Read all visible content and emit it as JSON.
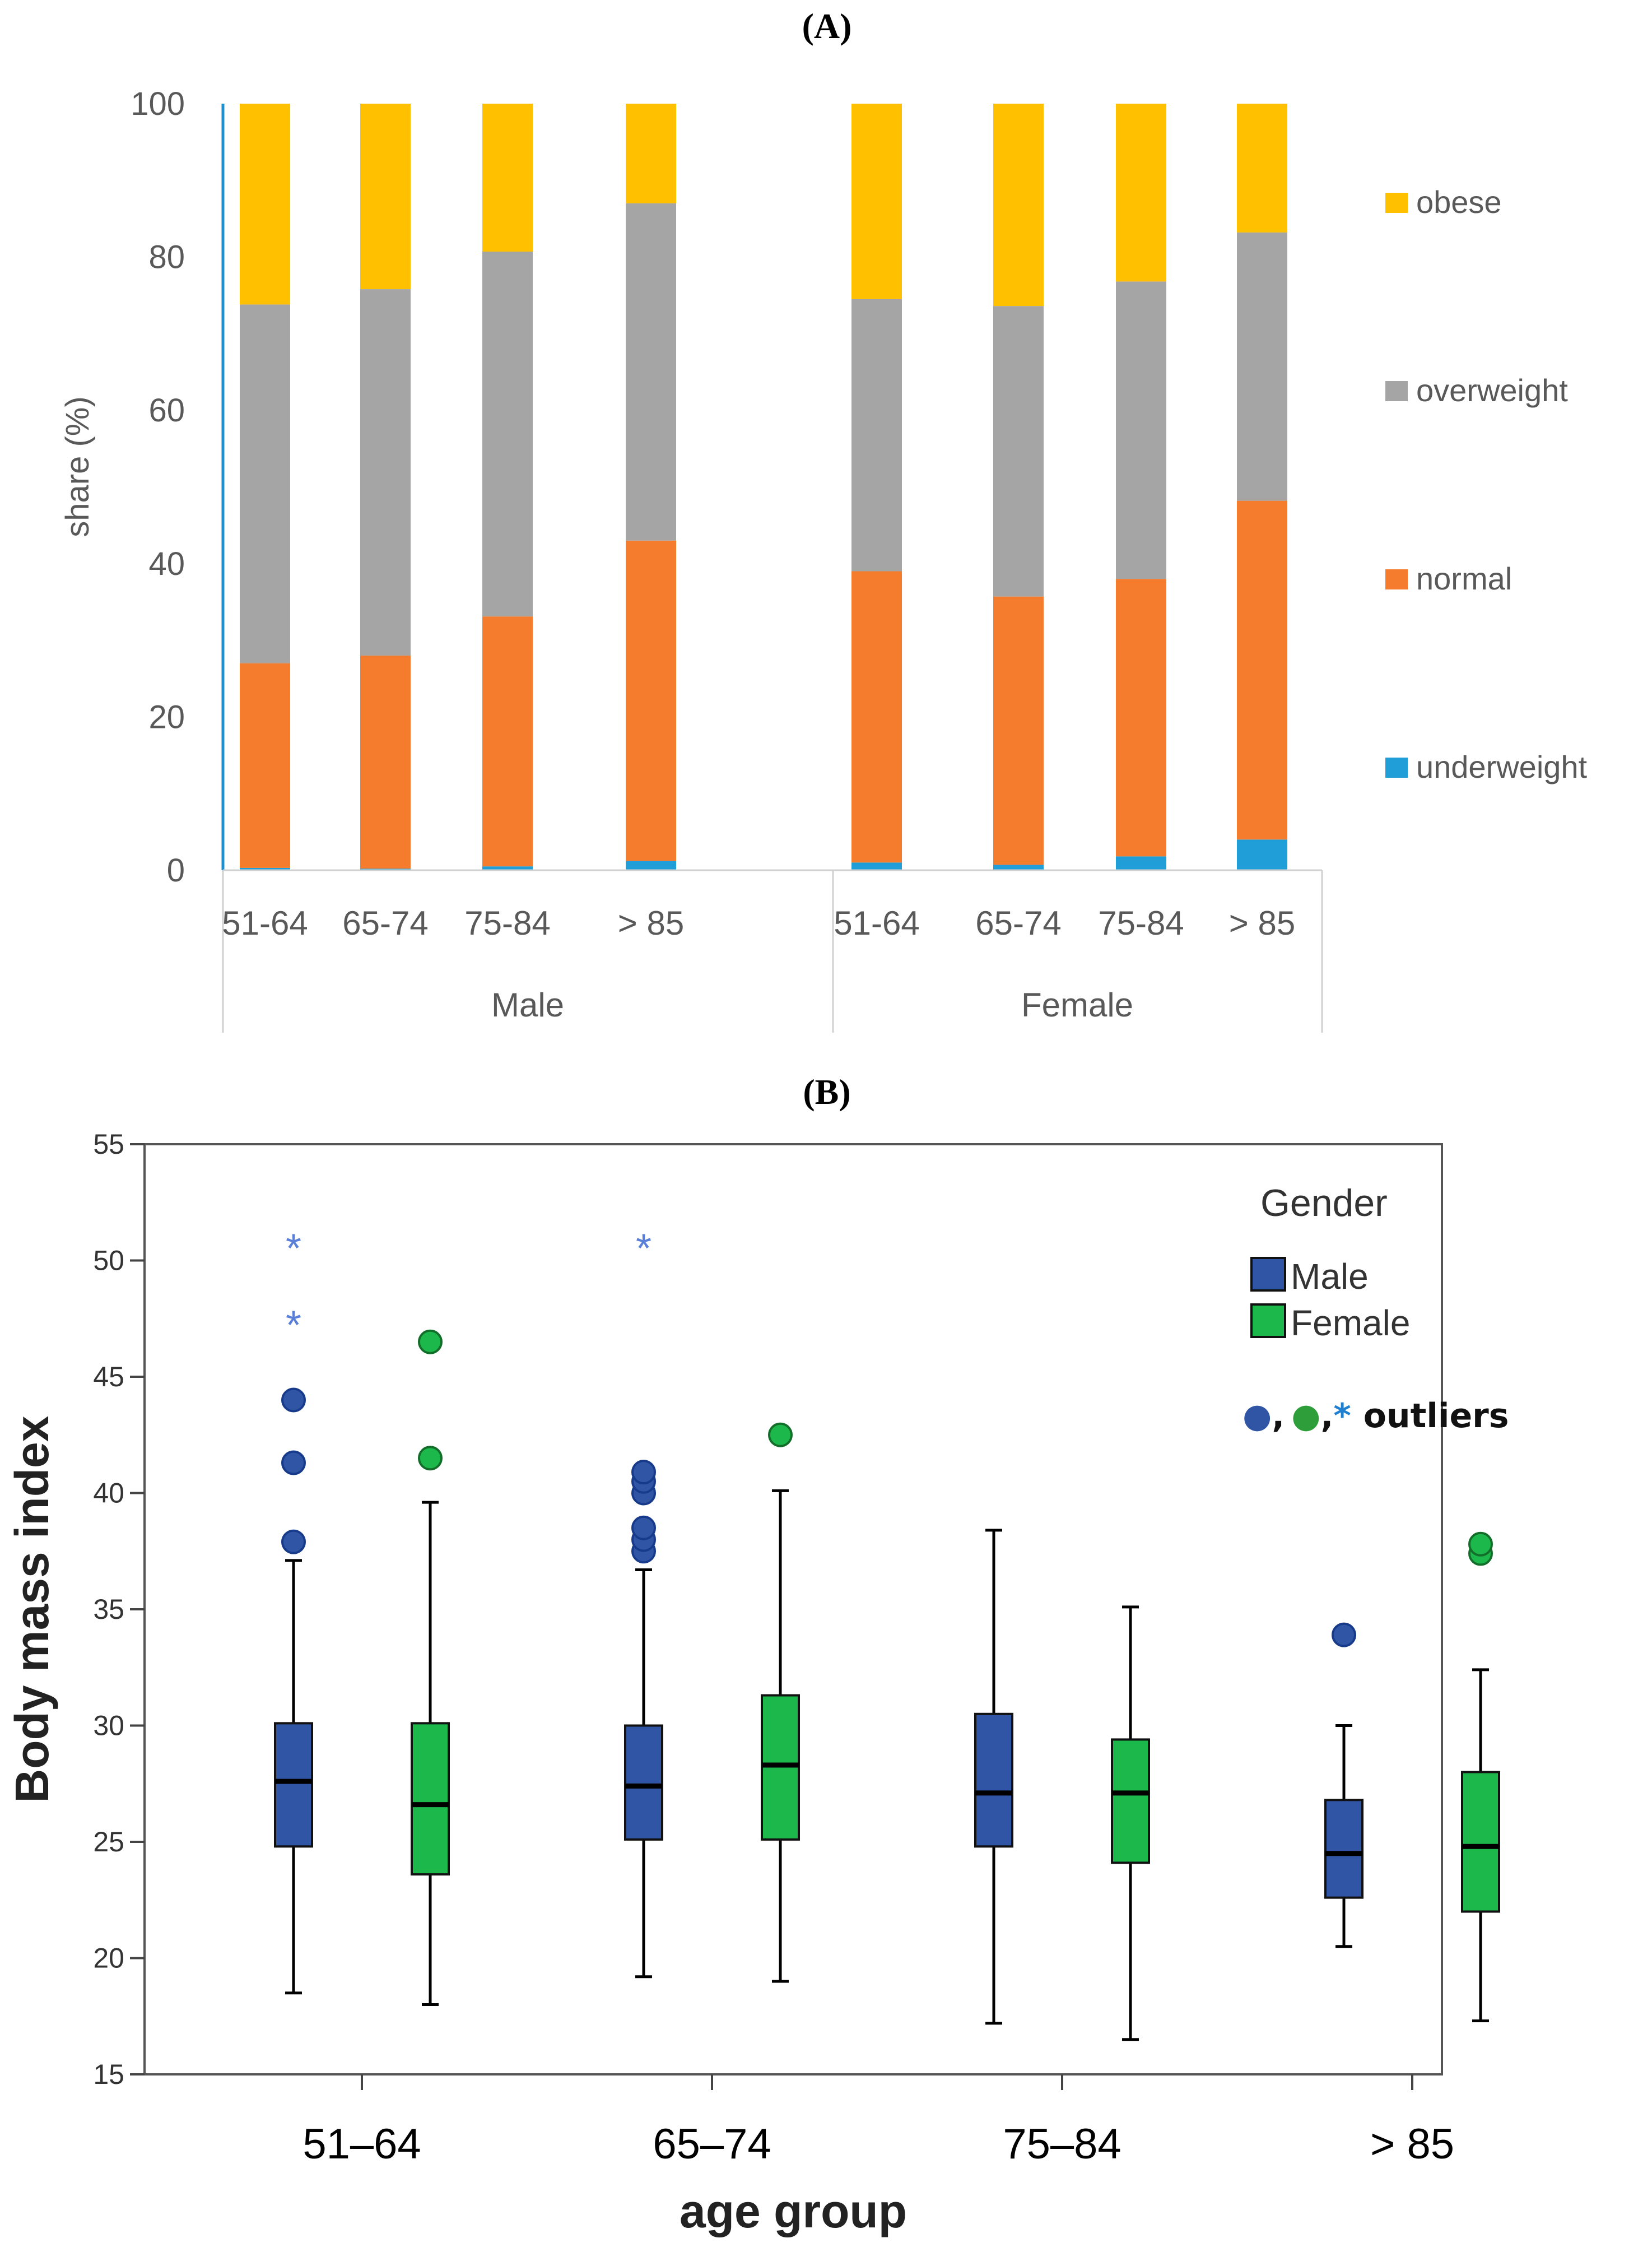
{
  "chart_data": [
    {
      "panel_label": "(A)",
      "type": "bar",
      "stacked": true,
      "ylabel": "share (%)",
      "ylim": [
        0,
        100
      ],
      "yticks": [
        0,
        20,
        40,
        60,
        80,
        100
      ],
      "groups": [
        {
          "name": "Male",
          "categories": [
            "51-64",
            "65-74",
            "75-84",
            "> 85"
          ]
        },
        {
          "name": "Female",
          "categories": [
            "51-64",
            "65-74",
            "75-84",
            "> 85"
          ]
        }
      ],
      "series": [
        {
          "name": "underweight",
          "color": "#1f9ed8",
          "values": [
            0.3,
            0.2,
            0.5,
            1.2,
            1.0,
            0.7,
            1.8,
            4.0
          ]
        },
        {
          "name": "normal",
          "color": "#f47c2c",
          "values": [
            26.7,
            27.8,
            32.6,
            41.8,
            38.0,
            35.0,
            36.2,
            44.2
          ]
        },
        {
          "name": "overweight",
          "color": "#a5a5a5",
          "values": [
            46.8,
            47.8,
            47.6,
            44.0,
            35.5,
            37.9,
            38.8,
            35.0
          ]
        },
        {
          "name": "obese",
          "color": "#ffc000",
          "values": [
            26.2,
            24.2,
            19.3,
            13.0,
            25.5,
            26.4,
            23.2,
            16.8
          ]
        }
      ],
      "legend_position": "right"
    },
    {
      "panel_label": "(B)",
      "type": "boxplot",
      "xlabel": "age group",
      "ylabel": "Body mass index",
      "ylim": [
        15,
        55
      ],
      "yticks": [
        15,
        20,
        25,
        30,
        35,
        40,
        45,
        50,
        55
      ],
      "categories": [
        "51–64",
        "65–74",
        "75–84",
        "> 85"
      ],
      "legend": {
        "title": "Gender",
        "entries": [
          "Male",
          "Female"
        ],
        "outlier_label": "outliers",
        "outlier_symbols": [
          "●",
          ",",
          "●",
          ",",
          "*"
        ]
      },
      "series": [
        {
          "name": "Male",
          "color": "#2f55a4",
          "boxes": [
            {
              "category": "51–64",
              "whisker_low": 18.5,
              "q1": 24.8,
              "median": 27.6,
              "q3": 30.1,
              "whisker_high": 37.1,
              "outliers": [
                37.9,
                41.3,
                44.0
              ],
              "extremes": [
                47.4,
                50.7
              ]
            },
            {
              "category": "65–74",
              "whisker_low": 19.2,
              "q1": 25.1,
              "median": 27.4,
              "q3": 30.0,
              "whisker_high": 36.7,
              "outliers": [
                37.5,
                38.0,
                38.5,
                40.0,
                40.5,
                40.9
              ],
              "extremes": [
                50.7
              ]
            },
            {
              "category": "75–84",
              "whisker_low": 17.2,
              "q1": 24.8,
              "median": 27.1,
              "q3": 30.5,
              "whisker_high": 38.4,
              "outliers": [],
              "extremes": []
            },
            {
              "category": "> 85",
              "whisker_low": 20.5,
              "q1": 22.6,
              "median": 24.5,
              "q3": 26.8,
              "whisker_high": 30.0,
              "outliers": [
                33.9
              ],
              "extremes": []
            }
          ]
        },
        {
          "name": "Female",
          "color": "#1cb84b",
          "boxes": [
            {
              "category": "51–64",
              "whisker_low": 18.0,
              "q1": 23.6,
              "median": 26.6,
              "q3": 30.1,
              "whisker_high": 39.6,
              "outliers": [
                41.5,
                46.5
              ],
              "extremes": []
            },
            {
              "category": "65–74",
              "whisker_low": 19.0,
              "q1": 25.1,
              "median": 28.3,
              "q3": 31.3,
              "whisker_high": 40.1,
              "outliers": [
                42.5
              ],
              "extremes": []
            },
            {
              "category": "75–84",
              "whisker_low": 16.5,
              "q1": 24.1,
              "median": 27.1,
              "q3": 29.4,
              "whisker_high": 35.1,
              "outliers": [],
              "extremes": []
            },
            {
              "category": "> 85",
              "whisker_low": 17.3,
              "q1": 22.0,
              "median": 24.8,
              "q3": 28.0,
              "whisker_high": 32.4,
              "outliers": [
                37.4,
                37.8
              ],
              "extremes": []
            }
          ]
        }
      ]
    }
  ]
}
